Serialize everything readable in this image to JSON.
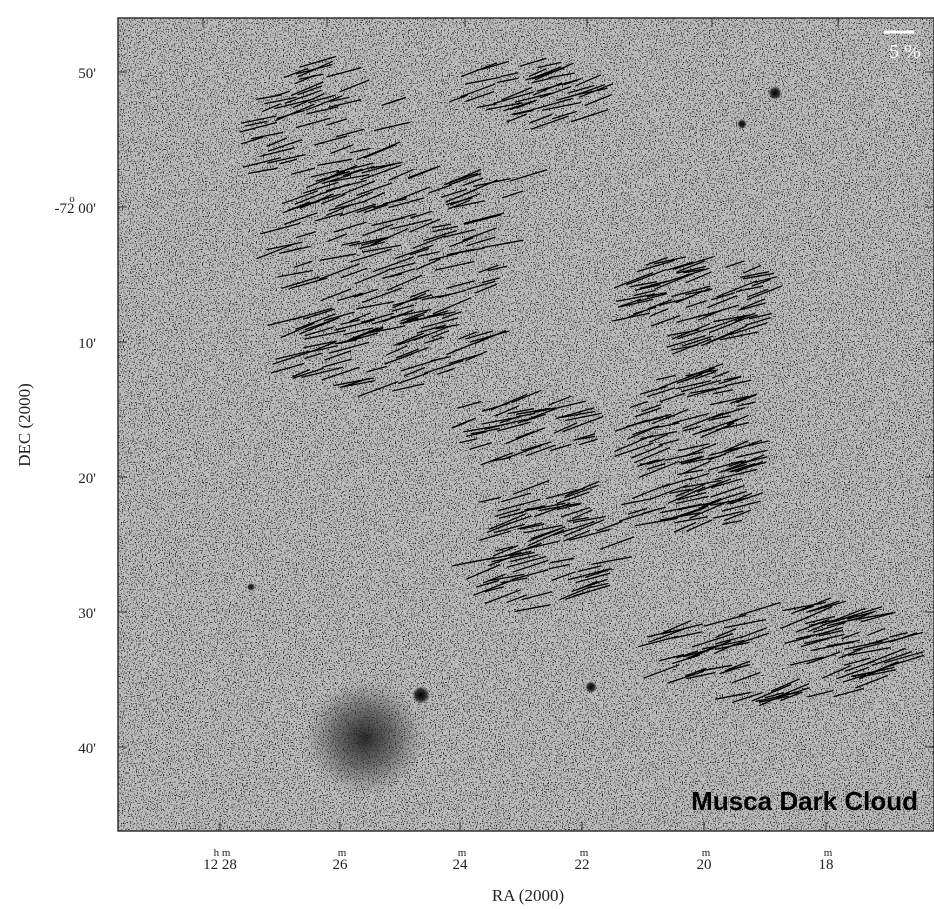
{
  "figure": {
    "label": "Musca Dark Cloud",
    "scale_bar": "5 %",
    "x_axis": {
      "title": "RA (2000)",
      "ticks": [
        {
          "sup": "h  m",
          "label": "12 28"
        },
        {
          "sup": "m",
          "label": "26"
        },
        {
          "sup": "m",
          "label": "24"
        },
        {
          "sup": "m",
          "label": "22"
        },
        {
          "sup": "m",
          "label": "20"
        },
        {
          "sup": "m",
          "label": "18"
        }
      ]
    },
    "y_axis": {
      "title": "DEC (2000)",
      "ticks": [
        {
          "sup": "",
          "label": "50'"
        },
        {
          "sup": "o",
          "label": "-72 00'"
        },
        {
          "sup": "",
          "label": "10'"
        },
        {
          "sup": "",
          "label": "20'"
        },
        {
          "sup": "",
          "label": "30'"
        },
        {
          "sup": "",
          "label": "40'"
        }
      ]
    }
  }
}
